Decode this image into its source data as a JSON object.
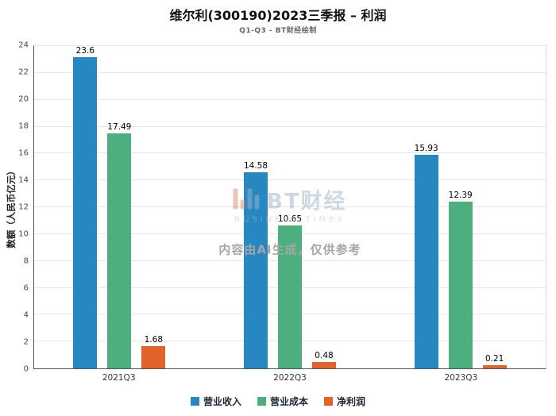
{
  "title": "维尔利(300190)2023三季报 – 利润",
  "subtitle": "Q1-Q3 - BT财经绘制",
  "watermark": {
    "brand": "BT财经",
    "brand_sub": "BUSINESS TIMES",
    "notice": "内容由AI生成，仅供参考"
  },
  "chart_data": {
    "type": "bar",
    "categories": [
      "2021Q3",
      "2022Q3",
      "2023Q3"
    ],
    "series": [
      {
        "name": "营业收入",
        "color": "#2787c0",
        "values": [
          23.6,
          14.58,
          15.93
        ]
      },
      {
        "name": "营业成本",
        "color": "#4caf7d",
        "values": [
          17.49,
          10.65,
          12.39
        ]
      },
      {
        "name": "净利润",
        "color": "#e2622a",
        "values": [
          1.68,
          0.48,
          0.21
        ]
      }
    ],
    "title": "维尔利(300190)2023三季报 – 利润",
    "xlabel": "",
    "ylabel": "数额（人民币亿元）",
    "ylim": [
      0,
      24
    ],
    "ytick_step": 2,
    "grid": true,
    "legend_position": "bottom"
  }
}
